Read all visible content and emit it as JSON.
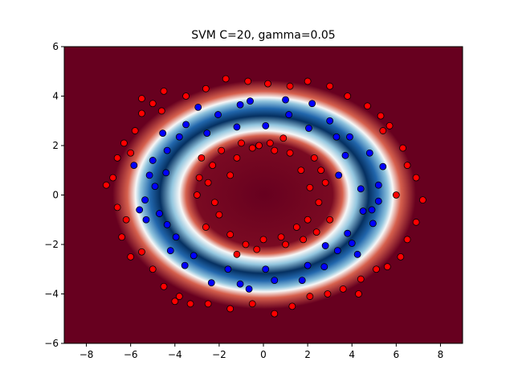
{
  "chart_data": {
    "type": "scatter",
    "title": "SVM C=20, gamma=0.05",
    "xlim": [
      -9,
      9
    ],
    "ylim": [
      -6,
      6
    ],
    "xticks": [
      {
        "value": -8,
        "label": "−8"
      },
      {
        "value": -6,
        "label": "−6"
      },
      {
        "value": -4,
        "label": "−4"
      },
      {
        "value": -2,
        "label": "−2"
      },
      0,
      2,
      4,
      6,
      8
    ],
    "yticks": [
      {
        "value": -6,
        "label": "−6"
      },
      {
        "value": -4,
        "label": "−4"
      },
      {
        "value": -2,
        "label": "−2"
      },
      0,
      2,
      4,
      6
    ],
    "series": [
      {
        "color": "#ff0000",
        "x": [
          -7.1,
          -6.6,
          -6.8,
          -6.4,
          -6.0,
          -5.5,
          -5.0,
          -4.5,
          -4.0,
          -3.3,
          -2.5,
          -1.5,
          -0.5,
          0.5,
          1.3,
          2.1,
          2.9,
          3.6,
          4.4,
          5.1,
          5.6,
          6.2,
          6.5,
          6.9,
          7.2,
          6.9,
          6.5,
          6.3,
          5.7,
          5.3,
          4.7,
          3.8,
          3.0,
          2.0,
          1.2,
          0.2,
          -0.7,
          -1.7,
          -2.6,
          -3.5,
          -4.5,
          -5.0,
          -5.5,
          -5.8,
          -6.3,
          -6.6,
          -6.0,
          -5.5,
          -4.6,
          5.4,
          6.0,
          -6.2,
          -3.8,
          4.3,
          -2.0,
          -2.5,
          -2.3,
          -1.9,
          -1.2,
          -0.5,
          0.5,
          1.2,
          1.7,
          2.1,
          2.5,
          2.0,
          1.5,
          0.8,
          0.0,
          -0.8,
          -1.5,
          -2.6,
          -3.0,
          -2.9,
          -1.0,
          0.3,
          1.8,
          2.8,
          -2.2,
          2.3,
          -1.5,
          3.0,
          -0.3,
          1.0,
          2.4,
          -1.2,
          2.6,
          -2.8,
          0.9,
          -0.2
        ],
        "y": [
          0.4,
          -0.5,
          0.7,
          -1.7,
          -2.5,
          -2.3,
          -3.0,
          -3.7,
          -4.3,
          -4.4,
          -4.4,
          -4.6,
          -4.4,
          -4.8,
          -4.5,
          -4.1,
          -4.0,
          -3.8,
          -3.4,
          -3.0,
          -2.9,
          -2.5,
          -1.8,
          -1.1,
          -0.2,
          0.7,
          1.2,
          1.9,
          2.8,
          3.2,
          3.6,
          4.0,
          4.4,
          4.6,
          4.4,
          4.5,
          4.6,
          4.7,
          4.3,
          4.0,
          4.2,
          3.7,
          3.3,
          2.6,
          2.1,
          1.5,
          1.7,
          3.9,
          3.4,
          2.6,
          0.0,
          -1.0,
          -4.1,
          -4.0,
          -0.8,
          0.5,
          1.2,
          1.8,
          1.5,
          1.9,
          1.8,
          1.7,
          1.0,
          0.3,
          -0.3,
          -1.0,
          -1.3,
          -1.7,
          -1.8,
          -2.0,
          -1.6,
          -1.3,
          0.0,
          0.7,
          2.1,
          2.1,
          -1.8,
          0.5,
          -0.3,
          1.5,
          0.8,
          -1.0,
          -2.2,
          -2.0,
          -1.5,
          -2.4,
          1.0,
          1.5,
          2.3,
          2.0
        ]
      },
      {
        "color": "#0000ff",
        "x": [
          -0.6,
          1.0,
          -3.5,
          -1.2,
          0.1,
          2.2,
          3.0,
          3.3,
          3.7,
          5.4,
          5.2,
          4.9,
          4.95,
          4.0,
          2.75,
          1.75,
          -0.65,
          -2.35,
          -3.55,
          -4.2,
          -5.3,
          -5.6,
          -5.35,
          -5.15,
          -5.0,
          -5.85,
          -4.35,
          -4.55,
          -2.95,
          -2.05,
          -1.05,
          1.15,
          3.4,
          4.4,
          4.5,
          3.8,
          3.35,
          2.8,
          2.0,
          0.5,
          0.1,
          -1.05,
          -1.6,
          -3.15,
          -3.95,
          -4.35,
          -4.7,
          -4.9,
          -4.4,
          -3.8,
          -2.55,
          2.05,
          3.9,
          4.8,
          5.2,
          4.25
        ],
        "y": [
          3.8,
          3.85,
          2.85,
          2.75,
          2.8,
          3.7,
          3.0,
          2.35,
          1.6,
          1.15,
          0.4,
          -0.6,
          -1.15,
          -1.95,
          -2.9,
          -3.45,
          -3.8,
          -3.55,
          -2.85,
          -2.25,
          -1.0,
          -0.6,
          -0.2,
          0.8,
          1.4,
          1.2,
          1.8,
          2.5,
          3.55,
          3.25,
          3.65,
          3.25,
          0.8,
          0.25,
          -0.65,
          -1.55,
          -2.25,
          -2.05,
          -2.85,
          -3.45,
          -3.0,
          -3.6,
          -3.0,
          -2.45,
          -1.7,
          -1.2,
          -0.75,
          0.35,
          0.9,
          2.35,
          2.5,
          2.7,
          2.35,
          1.7,
          -0.25,
          -2.4
        ]
      }
    ]
  }
}
